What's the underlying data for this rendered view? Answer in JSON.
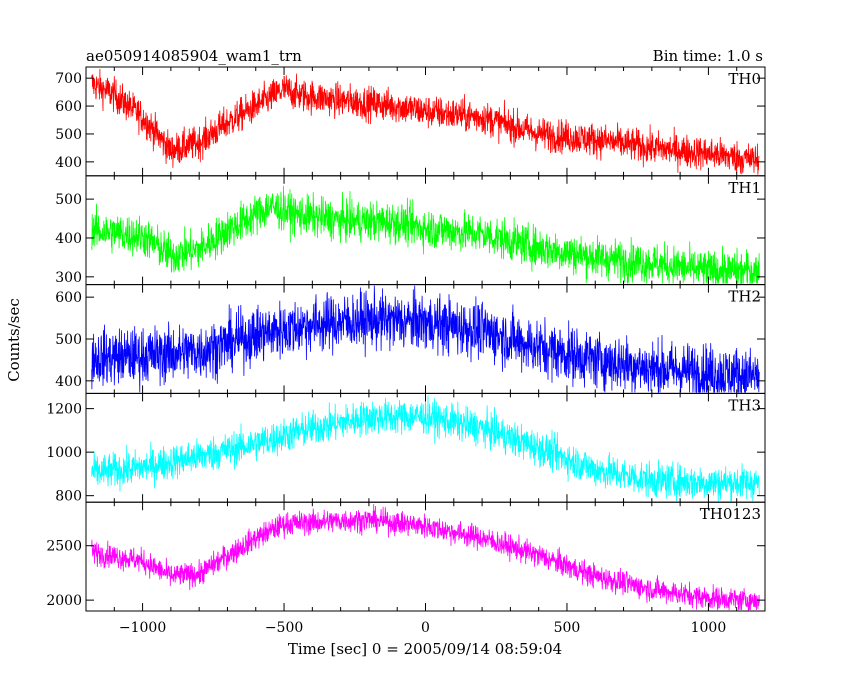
{
  "header": {
    "title": "ae050914085904_wam1_trn",
    "bin_time": "Bin time: 1.0 s"
  },
  "chart_data": {
    "type": "line",
    "xlabel": "Time [sec] 0 = 2005/09/14 08:59:04",
    "ylabel": "Counts/sec",
    "xlim": [
      -1200,
      1200
    ],
    "x_ticks": [
      -1000,
      -500,
      0,
      500,
      1000
    ],
    "x_tick_labels": [
      "−1000",
      "−500",
      "0",
      "500",
      "1000"
    ],
    "x_range": [
      -1180,
      1180
    ],
    "panels": [
      {
        "name": "TH0",
        "color": "#ff0000",
        "ylim": [
          350,
          740
        ],
        "y_ticks": [
          400,
          500,
          600,
          700
        ],
        "y_tick_labels": [
          "400",
          "500",
          "600",
          "700"
        ],
        "noise": 30,
        "trend": [
          [
            -1180,
            680
          ],
          [
            -1100,
            640
          ],
          [
            -1000,
            560
          ],
          [
            -900,
            440
          ],
          [
            -800,
            470
          ],
          [
            -700,
            540
          ],
          [
            -600,
            600
          ],
          [
            -500,
            660
          ],
          [
            -450,
            640
          ],
          [
            -300,
            620
          ],
          [
            -100,
            600
          ],
          [
            0,
            580
          ],
          [
            200,
            560
          ],
          [
            400,
            500
          ],
          [
            600,
            480
          ],
          [
            800,
            450
          ],
          [
            1000,
            430
          ],
          [
            1180,
            405
          ]
        ]
      },
      {
        "name": "TH1",
        "color": "#00ff00",
        "ylim": [
          280,
          560
        ],
        "y_ticks": [
          300,
          400,
          500
        ],
        "y_tick_labels": [
          "300",
          "400",
          "500"
        ],
        "noise": 26,
        "trend": [
          [
            -1180,
            420
          ],
          [
            -1000,
            405
          ],
          [
            -900,
            355
          ],
          [
            -800,
            370
          ],
          [
            -700,
            420
          ],
          [
            -600,
            460
          ],
          [
            -550,
            480
          ],
          [
            -450,
            460
          ],
          [
            -300,
            445
          ],
          [
            -100,
            440
          ],
          [
            0,
            425
          ],
          [
            200,
            410
          ],
          [
            400,
            375
          ],
          [
            600,
            350
          ],
          [
            800,
            335
          ],
          [
            1000,
            315
          ],
          [
            1180,
            315
          ]
        ]
      },
      {
        "name": "TH2",
        "color": "#0000ff",
        "ylim": [
          370,
          630
        ],
        "y_ticks": [
          400,
          500,
          600
        ],
        "y_tick_labels": [
          "400",
          "500",
          "600"
        ],
        "noise": 34,
        "trend": [
          [
            -1180,
            455
          ],
          [
            -1000,
            460
          ],
          [
            -800,
            470
          ],
          [
            -600,
            510
          ],
          [
            -400,
            535
          ],
          [
            -200,
            545
          ],
          [
            0,
            540
          ],
          [
            200,
            520
          ],
          [
            400,
            480
          ],
          [
            600,
            450
          ],
          [
            800,
            430
          ],
          [
            1000,
            420
          ],
          [
            1180,
            410
          ]
        ]
      },
      {
        "name": "TH3",
        "color": "#00ffff",
        "ylim": [
          770,
          1270
        ],
        "y_ticks": [
          800,
          1000,
          1200
        ],
        "y_tick_labels": [
          "800",
          "1000",
          "1200"
        ],
        "noise": 40,
        "trend": [
          [
            -1180,
            905
          ],
          [
            -1000,
            930
          ],
          [
            -800,
            980
          ],
          [
            -600,
            1040
          ],
          [
            -400,
            1110
          ],
          [
            -200,
            1160
          ],
          [
            0,
            1165
          ],
          [
            200,
            1110
          ],
          [
            400,
            1020
          ],
          [
            600,
            920
          ],
          [
            800,
            870
          ],
          [
            1000,
            860
          ],
          [
            1180,
            860
          ]
        ]
      },
      {
        "name": "TH0123",
        "color": "#ff00ff",
        "ylim": [
          1900,
          2900
        ],
        "y_ticks": [
          2000,
          2500
        ],
        "y_tick_labels": [
          "2000",
          "2500"
        ],
        "noise": 55,
        "trend": [
          [
            -1180,
            2440
          ],
          [
            -1000,
            2360
          ],
          [
            -900,
            2220
          ],
          [
            -800,
            2240
          ],
          [
            -700,
            2410
          ],
          [
            -600,
            2570
          ],
          [
            -500,
            2700
          ],
          [
            -300,
            2730
          ],
          [
            -200,
            2740
          ],
          [
            0,
            2680
          ],
          [
            200,
            2570
          ],
          [
            400,
            2410
          ],
          [
            600,
            2220
          ],
          [
            800,
            2100
          ],
          [
            1000,
            2020
          ],
          [
            1180,
            1990
          ]
        ]
      }
    ]
  }
}
